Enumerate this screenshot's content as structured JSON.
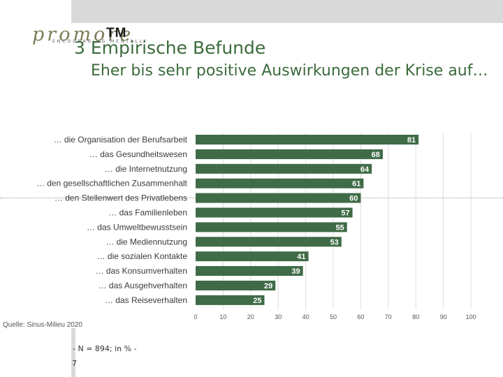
{
  "brand": {
    "name": "promore",
    "mark": "TM",
    "tagline": "ENCOURAGING MENTALLY"
  },
  "slide": {
    "title": "3 Empirische Befunde",
    "subtitle": "Eher bis sehr positive Auswirkungen der Krise auf…",
    "source": "Quelle: Sinus-Milieu 2020",
    "footnote": "- N = 894; in % -",
    "page_number": "7"
  },
  "colors": {
    "bar": "#3f6b47",
    "heading": "#3c6b3c",
    "grid": "#dddddd"
  },
  "chart_data": {
    "type": "bar",
    "orientation": "horizontal",
    "categories": [
      "… die Organisation der Berufsarbeit",
      "… das Gesundheitswesen",
      "… die Internetnutzung",
      "… den gesellschaftlichen Zusammenhalt",
      "… den Stellenwert des Privatlebens",
      "… das Familienleben",
      "… das Umweltbewusstsein",
      "… die Mediennutzung",
      "… die sozialen Kontakte",
      "… das Konsumverhalten",
      "… das Ausgehverhalten",
      "… das Reiseverhalten"
    ],
    "values": [
      81,
      68,
      64,
      61,
      60,
      57,
      55,
      53,
      41,
      39,
      29,
      25
    ],
    "xlim": [
      0,
      100
    ],
    "xticks": [
      0,
      10,
      20,
      30,
      40,
      50,
      60,
      70,
      80,
      90,
      100
    ],
    "xlabel": "",
    "ylabel": "",
    "unit": "%",
    "grid": true
  }
}
